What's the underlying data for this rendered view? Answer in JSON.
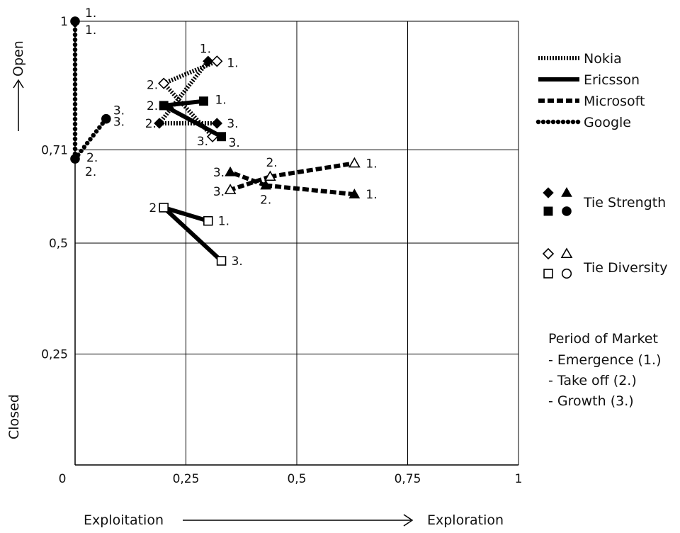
{
  "chart_data": {
    "type": "line",
    "title": "",
    "xlabel": {
      "left": "Exploitation",
      "right": "Exploration"
    },
    "ylabel": {
      "bottom": "Closed",
      "top": "Open"
    },
    "xlim": [
      0,
      1
    ],
    "ylim": [
      0,
      1
    ],
    "grid": true,
    "x_ticks": [
      0,
      0.25,
      0.5,
      0.75,
      1
    ],
    "x_tick_labels": [
      "0",
      "0,25",
      "0,5",
      "0,75",
      "1"
    ],
    "y_ticks": [
      0.25,
      0.5,
      0.71,
      1
    ],
    "y_tick_labels": [
      "0,25",
      "0,5",
      "0,71",
      "1"
    ],
    "series": [
      {
        "name": "Nokia",
        "style": "dotted",
        "measure": "Tie Strength",
        "marker": "diamond-filled",
        "points": [
          {
            "period": "1.",
            "x": 0.3,
            "y": 0.91
          },
          {
            "period": "2.",
            "x": 0.19,
            "y": 0.77
          },
          {
            "period": "3.",
            "x": 0.32,
            "y": 0.77
          }
        ]
      },
      {
        "name": "Nokia",
        "style": "dotted",
        "measure": "Tie Diversity",
        "marker": "diamond-open",
        "points": [
          {
            "period": "1.",
            "x": 0.32,
            "y": 0.91
          },
          {
            "period": "2.",
            "x": 0.2,
            "y": 0.86
          },
          {
            "period": "3.",
            "x": 0.31,
            "y": 0.74
          }
        ]
      },
      {
        "name": "Ericsson",
        "style": "solid",
        "measure": "Tie Strength",
        "marker": "square-filled",
        "points": [
          {
            "period": "1.",
            "x": 0.29,
            "y": 0.82
          },
          {
            "period": "2.",
            "x": 0.2,
            "y": 0.81
          },
          {
            "period": "3.",
            "x": 0.33,
            "y": 0.74
          }
        ]
      },
      {
        "name": "Ericsson",
        "style": "solid",
        "measure": "Tie Diversity",
        "marker": "square-open",
        "points": [
          {
            "period": "1.",
            "x": 0.3,
            "y": 0.55
          },
          {
            "period": "2",
            "x": 0.2,
            "y": 0.58
          },
          {
            "period": "3.",
            "x": 0.33,
            "y": 0.46
          }
        ]
      },
      {
        "name": "Microsoft",
        "style": "dashed",
        "measure": "Tie Strength",
        "marker": "triangle-filled",
        "points": [
          {
            "period": "1.",
            "x": 0.63,
            "y": 0.61
          },
          {
            "period": "2.",
            "x": 0.43,
            "y": 0.63
          },
          {
            "period": "3.",
            "x": 0.35,
            "y": 0.66
          }
        ]
      },
      {
        "name": "Microsoft",
        "style": "dashed",
        "measure": "Tie Diversity",
        "marker": "triangle-open",
        "points": [
          {
            "period": "1.",
            "x": 0.63,
            "y": 0.68
          },
          {
            "period": "2.",
            "x": 0.44,
            "y": 0.65
          },
          {
            "period": "3.",
            "x": 0.35,
            "y": 0.62
          }
        ]
      },
      {
        "name": "Google",
        "style": "round-dotted",
        "measure": "Tie Strength",
        "marker": "circle-filled",
        "points": [
          {
            "period": "1.",
            "x": 0.0,
            "y": 1.0
          },
          {
            "period": "2.",
            "x": 0.0,
            "y": 0.69
          },
          {
            "period": "3.",
            "x": 0.07,
            "y": 0.78
          }
        ]
      }
    ],
    "legend": {
      "placement": "right",
      "companies": [
        {
          "label": "Nokia",
          "style": "dotted"
        },
        {
          "label": "Ericsson",
          "style": "solid"
        },
        {
          "label": "Microsoft",
          "style": "dashed"
        },
        {
          "label": "Google",
          "style": "round-dotted"
        }
      ],
      "markers": [
        {
          "label": "Tie Strength",
          "symbols": [
            "diamond-filled",
            "triangle-filled",
            "square-filled",
            "circle-filled"
          ]
        },
        {
          "label": "Tie Diversity",
          "symbols": [
            "diamond-open",
            "triangle-open",
            "square-open",
            "circle-open"
          ]
        }
      ],
      "periods_title": "Period of Market",
      "periods": [
        "- Emergence (1.)",
        "- Take off (2.)",
        "- Growth (3.)"
      ]
    }
  }
}
